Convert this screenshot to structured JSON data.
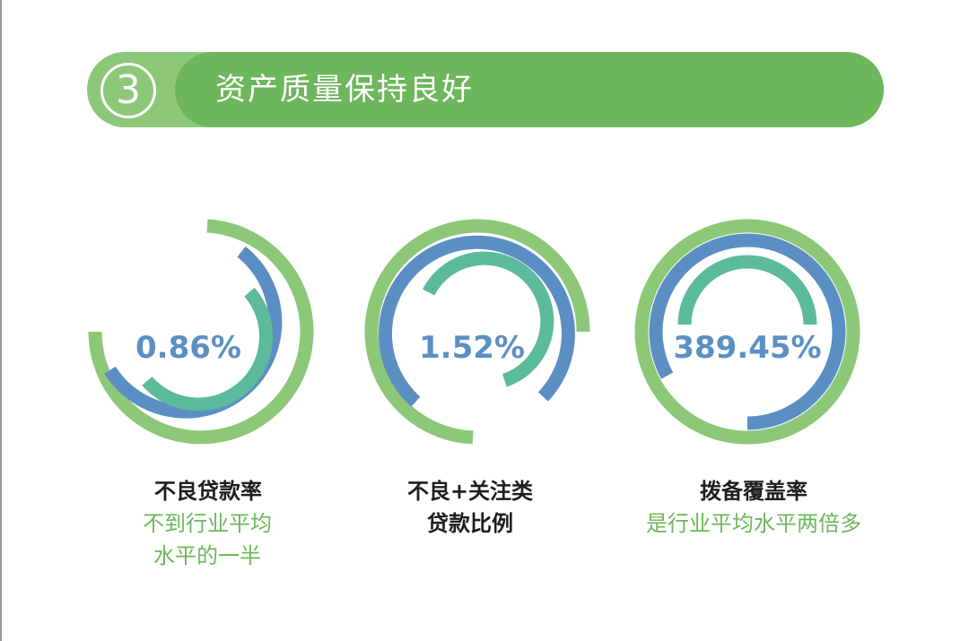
{
  "section": {
    "number": "3",
    "title": "资产质量保持良好"
  },
  "metrics": [
    {
      "value": "0.86%",
      "label_lines": [
        "不良贷款率"
      ],
      "note_lines": [
        "不到行业平均",
        "水平的一半"
      ]
    },
    {
      "value": "1.52%",
      "label_lines": [
        "不良+关注类",
        "贷款比例"
      ],
      "note_lines": []
    },
    {
      "value": "389.45%",
      "label_lines": [
        "拨备覆盖率"
      ],
      "note_lines": [
        "是行业平均水平两倍多"
      ]
    }
  ],
  "colors": {
    "banner_light": "#8dc878",
    "banner_dark": "#6db65b",
    "ring_outer": "#8dc878",
    "ring_middle": "#5b8fc4",
    "ring_inner": "#5cba9c",
    "value_text": "#5b8fc4",
    "note_text": "#6cb85a"
  }
}
